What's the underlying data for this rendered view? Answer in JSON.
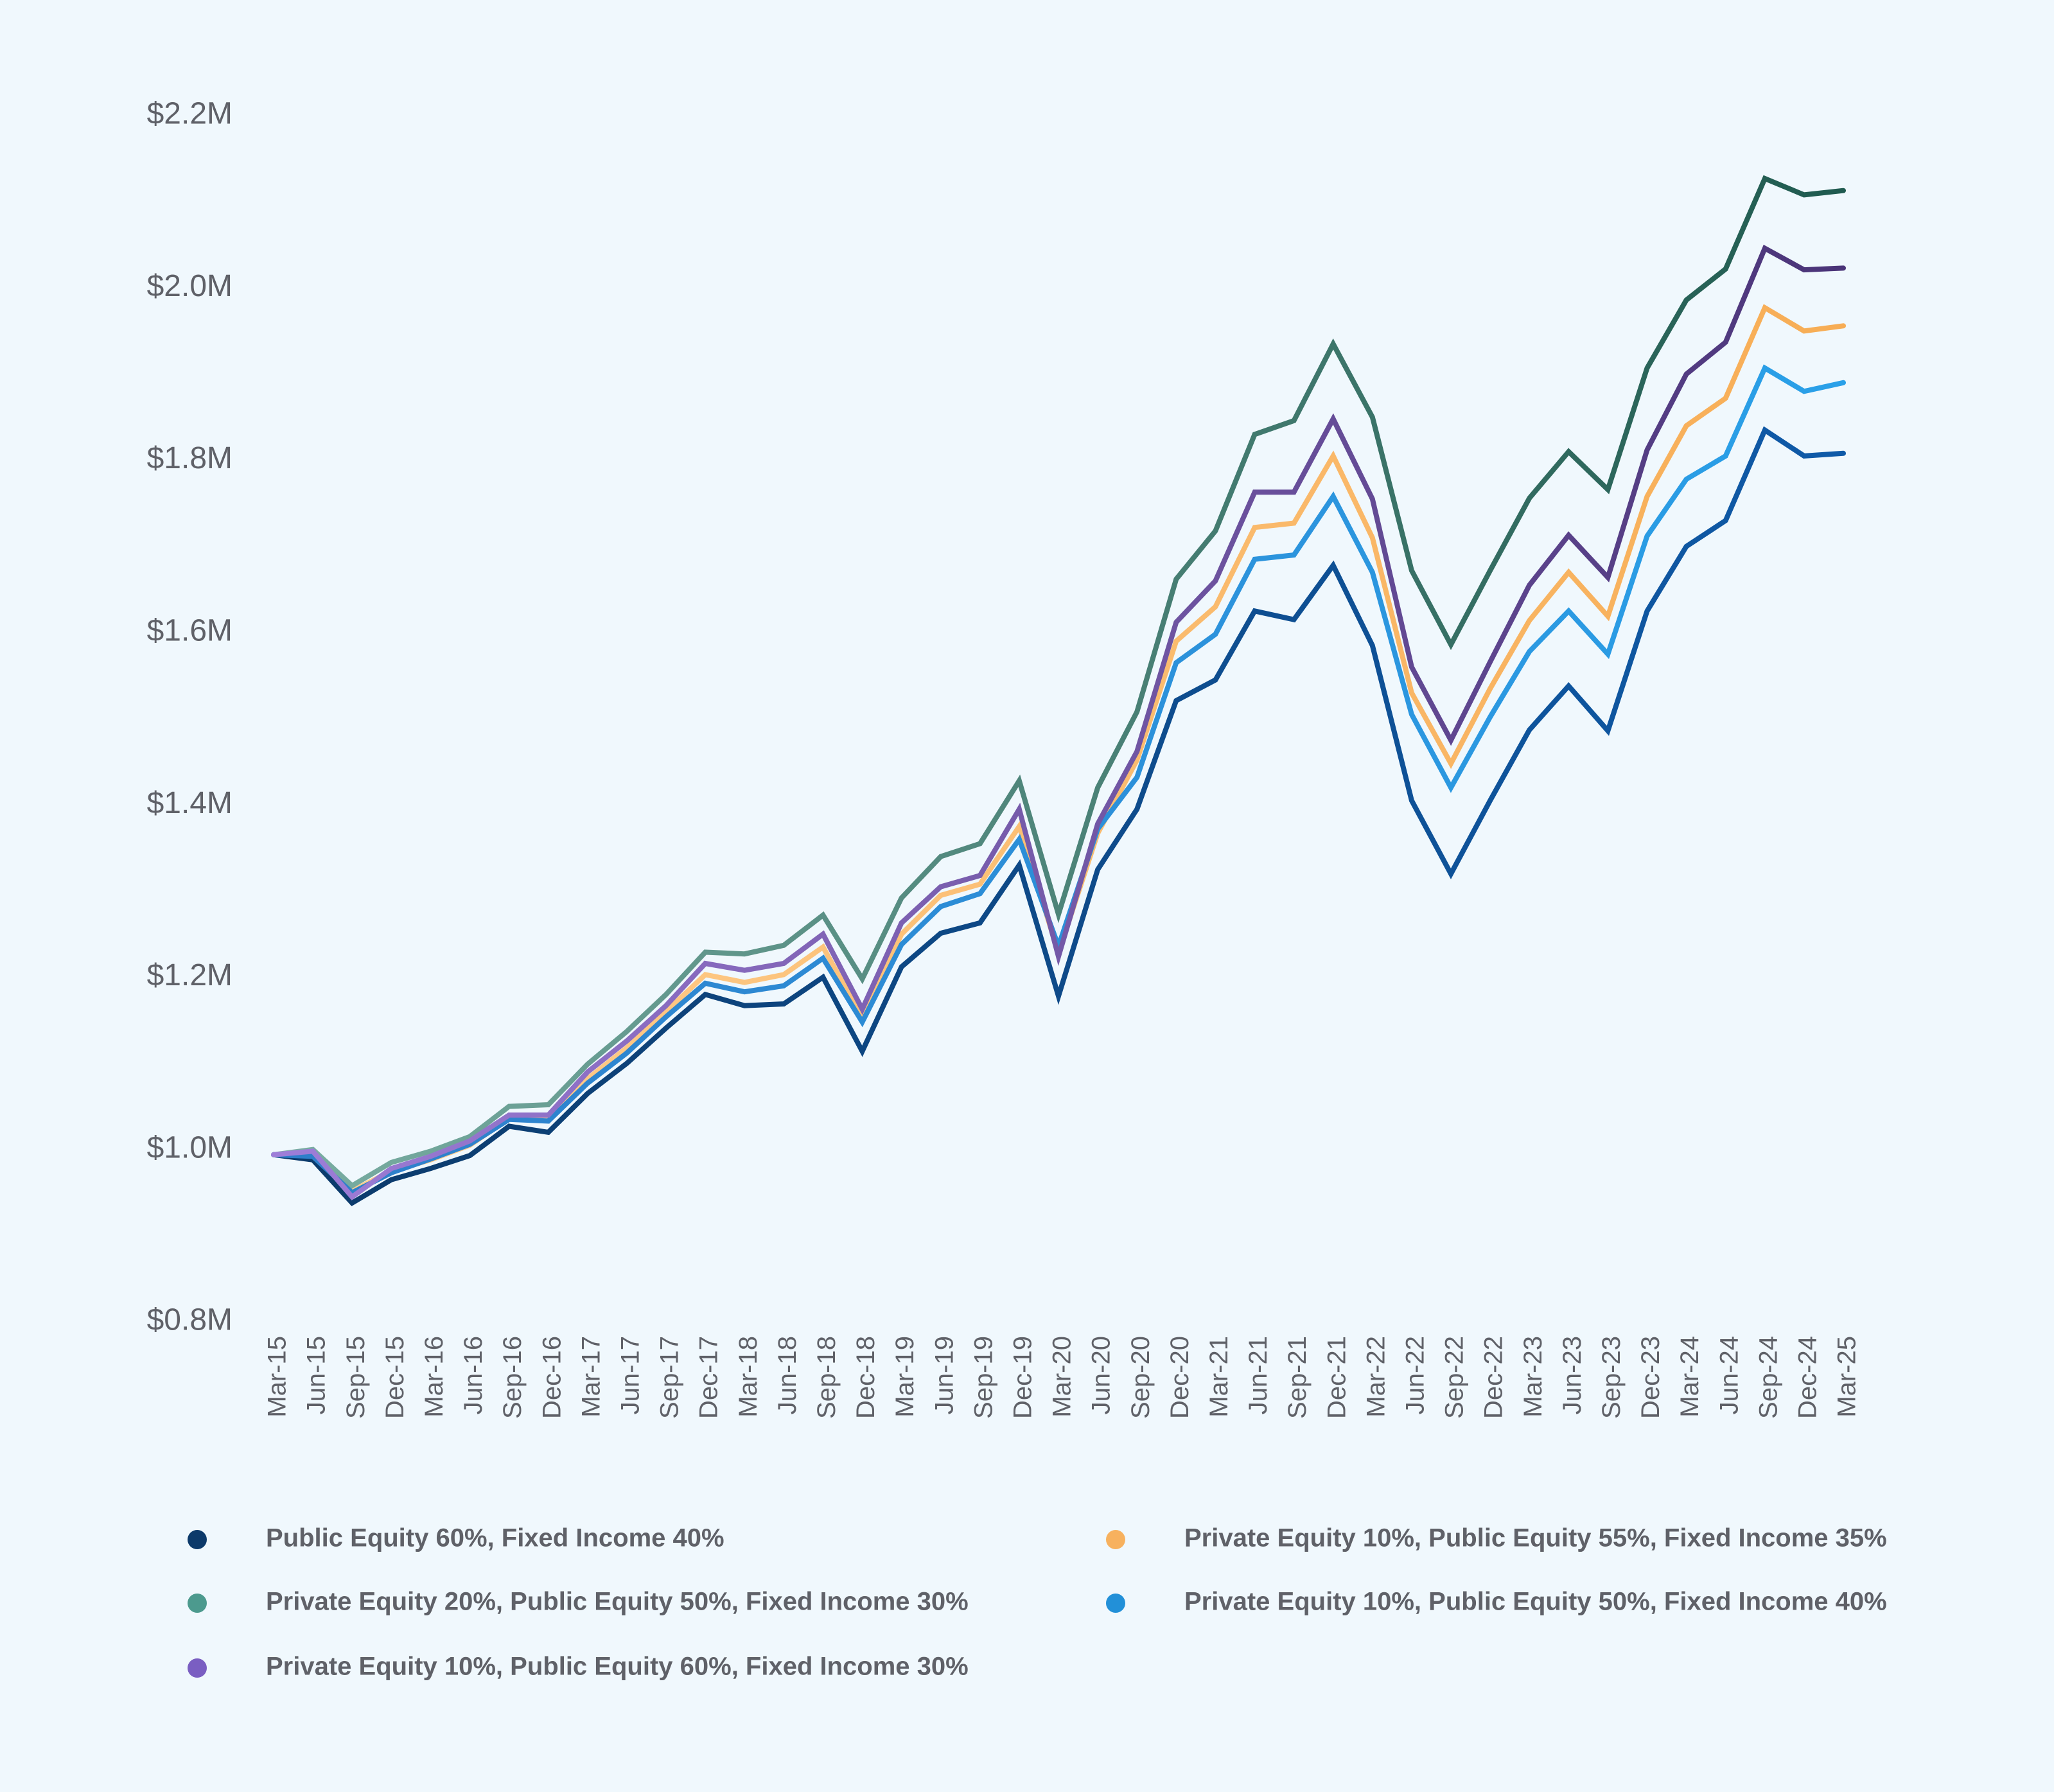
{
  "chart_data": {
    "type": "line",
    "title": "",
    "xlabel": "",
    "ylabel": "",
    "ylim": [
      0.8,
      2.2
    ],
    "yticks": [
      {
        "value": 0.8,
        "label": "$0.8M"
      },
      {
        "value": 1.0,
        "label": "$1.0M"
      },
      {
        "value": 1.2,
        "label": "$1.2M"
      },
      {
        "value": 1.4,
        "label": "$1.4M"
      },
      {
        "value": 1.6,
        "label": "$1.6M"
      },
      {
        "value": 1.8,
        "label": "$1.8M"
      },
      {
        "value": 2.0,
        "label": "$2.0M"
      },
      {
        "value": 2.2,
        "label": "$2.2M"
      }
    ],
    "grid": false,
    "legend_position": "bottom",
    "categories": [
      "Mar-15",
      "Jun-15",
      "Sep-15",
      "Dec-15",
      "Mar-16",
      "Jun-16",
      "Sep-16",
      "Dec-16",
      "Mar-17",
      "Jun-17",
      "Sep-17",
      "Dec-17",
      "Mar-18",
      "Jun-18",
      "Sep-18",
      "Dec-18",
      "Mar-19",
      "Jun-19",
      "Sep-19",
      "Dec-19",
      "Mar-20",
      "Jun-20",
      "Sep-20",
      "Dec-20",
      "Mar-21",
      "Jun-21",
      "Sep-21",
      "Dec-21",
      "Mar-22",
      "Jun-22",
      "Sep-22",
      "Dec-22",
      "Mar-23",
      "Jun-23",
      "Sep-23",
      "Dec-23",
      "Mar-24",
      "Jun-24",
      "Sep-24",
      "Dec-24",
      "Mar-25"
    ],
    "series": [
      {
        "name": "Public Equity 60%, Fixed Income 40%",
        "color_start": "#0c3a6a",
        "color_end": "#0f5aa8",
        "dot_color": "#0c3a6a",
        "values": [
          0.994,
          0.988,
          0.938,
          0.965,
          0.978,
          0.993,
          1.027,
          1.02,
          1.065,
          1.1,
          1.141,
          1.18,
          1.167,
          1.169,
          1.2,
          1.114,
          1.212,
          1.251,
          1.263,
          1.33,
          1.178,
          1.325,
          1.395,
          1.521,
          1.545,
          1.625,
          1.615,
          1.678,
          1.585,
          1.405,
          1.32,
          1.405,
          1.487,
          1.538,
          1.486,
          1.625,
          1.7,
          1.73,
          1.835,
          1.805,
          1.808
        ]
      },
      {
        "name": "Private Equity 10%, Public Equity 55%, Fixed Income 35%",
        "color_start": "#ffcf91",
        "color_end": "#f7ad55",
        "dot_color": "#f7b15e",
        "values": [
          0.994,
          0.995,
          0.952,
          0.975,
          0.988,
          1.005,
          1.036,
          1.035,
          1.082,
          1.118,
          1.16,
          1.203,
          1.194,
          1.203,
          1.235,
          1.153,
          1.25,
          1.295,
          1.308,
          1.375,
          1.228,
          1.367,
          1.452,
          1.59,
          1.63,
          1.722,
          1.727,
          1.805,
          1.71,
          1.53,
          1.448,
          1.535,
          1.614,
          1.67,
          1.619,
          1.758,
          1.84,
          1.872,
          1.977,
          1.95,
          1.956
        ]
      },
      {
        "name": "Private Equity 20%, Public Equity 50%, Fixed Income 30%",
        "color_start": "#7aaea3",
        "color_end": "#1f5a4f",
        "dot_color": "#4c9a8e",
        "values": [
          0.994,
          1.0,
          0.958,
          0.985,
          0.998,
          1.015,
          1.05,
          1.052,
          1.099,
          1.137,
          1.18,
          1.229,
          1.227,
          1.237,
          1.272,
          1.198,
          1.292,
          1.34,
          1.355,
          1.428,
          1.273,
          1.42,
          1.508,
          1.662,
          1.718,
          1.83,
          1.846,
          1.935,
          1.85,
          1.672,
          1.586,
          1.672,
          1.756,
          1.81,
          1.766,
          1.907,
          1.986,
          2.022,
          2.127,
          2.108,
          2.113
        ]
      },
      {
        "name": "Private Equity 10%, Public Equity 50%, Fixed Income 40%",
        "color_start": "#2e7ec9",
        "color_end": "#2aa0e8",
        "dot_color": "#2290d8",
        "values": [
          0.994,
          0.992,
          0.95,
          0.973,
          0.989,
          1.006,
          1.035,
          1.033,
          1.077,
          1.112,
          1.154,
          1.193,
          1.183,
          1.19,
          1.222,
          1.148,
          1.238,
          1.282,
          1.297,
          1.36,
          1.236,
          1.372,
          1.432,
          1.565,
          1.598,
          1.685,
          1.69,
          1.758,
          1.67,
          1.505,
          1.42,
          1.502,
          1.578,
          1.625,
          1.575,
          1.712,
          1.778,
          1.805,
          1.907,
          1.88,
          1.89
        ]
      },
      {
        "name": "Private Equity 10%, Public Equity 60%, Fixed Income 30%",
        "color_start": "#9e7ed8",
        "color_end": "#4a3478",
        "dot_color": "#7a5ec2",
        "values": [
          0.994,
          0.998,
          0.945,
          0.978,
          0.992,
          1.01,
          1.04,
          1.04,
          1.09,
          1.126,
          1.167,
          1.216,
          1.208,
          1.216,
          1.25,
          1.163,
          1.263,
          1.305,
          1.318,
          1.395,
          1.224,
          1.378,
          1.462,
          1.612,
          1.66,
          1.763,
          1.763,
          1.848,
          1.755,
          1.56,
          1.475,
          1.566,
          1.655,
          1.713,
          1.664,
          1.812,
          1.9,
          1.937,
          2.046,
          2.021,
          2.023
        ]
      }
    ],
    "legend": [
      {
        "series": 0,
        "column": 0,
        "row": 0
      },
      {
        "series": 2,
        "column": 0,
        "row": 1
      },
      {
        "series": 4,
        "column": 0,
        "row": 2
      },
      {
        "series": 1,
        "column": 1,
        "row": 0
      },
      {
        "series": 3,
        "column": 1,
        "row": 1
      }
    ]
  }
}
